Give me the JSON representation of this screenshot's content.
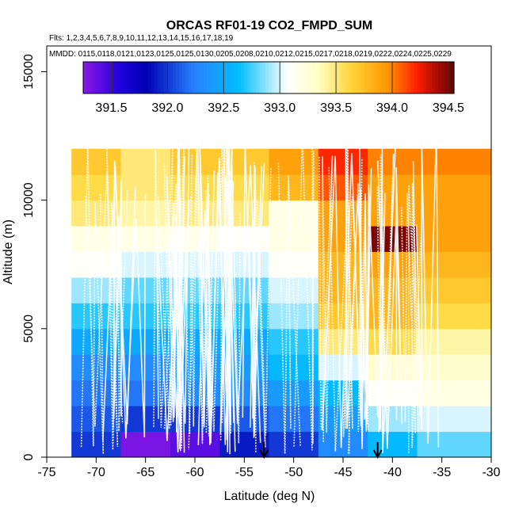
{
  "chart_data": {
    "type": "heatmap",
    "title": "ORCAS RF01-19 CO2_FMPD_SUM",
    "flights_note": "Flts: 1,2,3,4,5,6,7,8,9,10,11,12,13,14,15,16,17,18,19",
    "dates_note": "MMDD: 0115,0118,0121,0123,0125,0125,0130,0205,0208,0210,0212,0215,0217,0218,0219,0222,0224,0225,0229",
    "xlabel": "Latitude (deg N)",
    "ylabel": "Altitude (m)",
    "xlim": [
      -75,
      -30
    ],
    "ylim": [
      0,
      16000
    ],
    "xticks": [
      -75,
      -70,
      -65,
      -60,
      -55,
      -50,
      -45,
      -40,
      -35,
      -30
    ],
    "yticks": [
      0,
      5000,
      10000,
      15000
    ],
    "colorbar": {
      "min": 391.25,
      "max": 394.55,
      "ticks": [
        391.5,
        392.0,
        392.5,
        393.0,
        393.5,
        394.0,
        394.5
      ],
      "tick_labels": [
        "391.5",
        "392.0",
        "392.5",
        "393.0",
        "393.5",
        "394.0",
        "394.5"
      ]
    },
    "lat_bins": [
      [
        -72.5,
        -67.5
      ],
      [
        -67.5,
        -62.5
      ],
      [
        -62.5,
        -57.5
      ],
      [
        -57.5,
        -52.5
      ],
      [
        -52.5,
        -47.5
      ],
      [
        -47.5,
        -42.5
      ],
      [
        -42.5,
        -37.5
      ],
      [
        -37.5,
        -30
      ]
    ],
    "alt_bins": [
      [
        0,
        1000
      ],
      [
        1000,
        2000
      ],
      [
        2000,
        3000
      ],
      [
        3000,
        4000
      ],
      [
        4000,
        5000
      ],
      [
        5000,
        6000
      ],
      [
        6000,
        7000
      ],
      [
        7000,
        8000
      ],
      [
        8000,
        9000
      ],
      [
        9000,
        10000
      ],
      [
        10000,
        11000
      ],
      [
        11000,
        12000
      ]
    ],
    "values": [
      [
        392.0,
        392.1,
        392.2,
        392.3,
        392.5,
        392.7,
        392.9,
        393.1,
        393.2,
        393.5,
        393.6,
        393.7
      ],
      [
        391.3,
        392.0,
        392.2,
        392.3,
        392.5,
        392.7,
        392.8,
        393.0,
        393.2,
        393.4,
        393.5,
        393.5
      ],
      [
        391.4,
        392.0,
        392.3,
        392.4,
        392.5,
        392.7,
        392.8,
        393.0,
        393.2,
        393.5,
        393.6,
        393.7
      ],
      [
        391.9,
        392.1,
        392.3,
        392.4,
        392.5,
        392.7,
        392.8,
        393.0,
        393.1,
        393.5,
        393.6,
        393.7
      ],
      [
        392.0,
        392.2,
        392.4,
        392.6,
        392.7,
        392.9,
        393.0,
        393.1,
        393.2,
        393.2,
        393.8,
        393.9
      ],
      [
        392.3,
        392.4,
        392.6,
        393.0,
        393.5,
        393.7,
        393.8,
        393.8,
        393.9,
        393.9,
        394.1,
        394.2
      ],
      [
        392.6,
        392.9,
        393.1,
        393.3,
        393.6,
        393.8,
        393.8,
        393.9,
        394.5,
        393.9,
        393.9,
        394.0
      ],
      [
        392.8,
        393.0,
        393.2,
        393.3,
        393.4,
        393.6,
        393.7,
        393.8,
        393.9,
        393.9,
        393.9,
        394.0
      ]
    ],
    "markers": [
      {
        "type": "arrow",
        "lat": -53,
        "label": "down-arrow"
      },
      {
        "type": "arrow",
        "lat": -41.5,
        "label": "down-arrow"
      }
    ]
  }
}
